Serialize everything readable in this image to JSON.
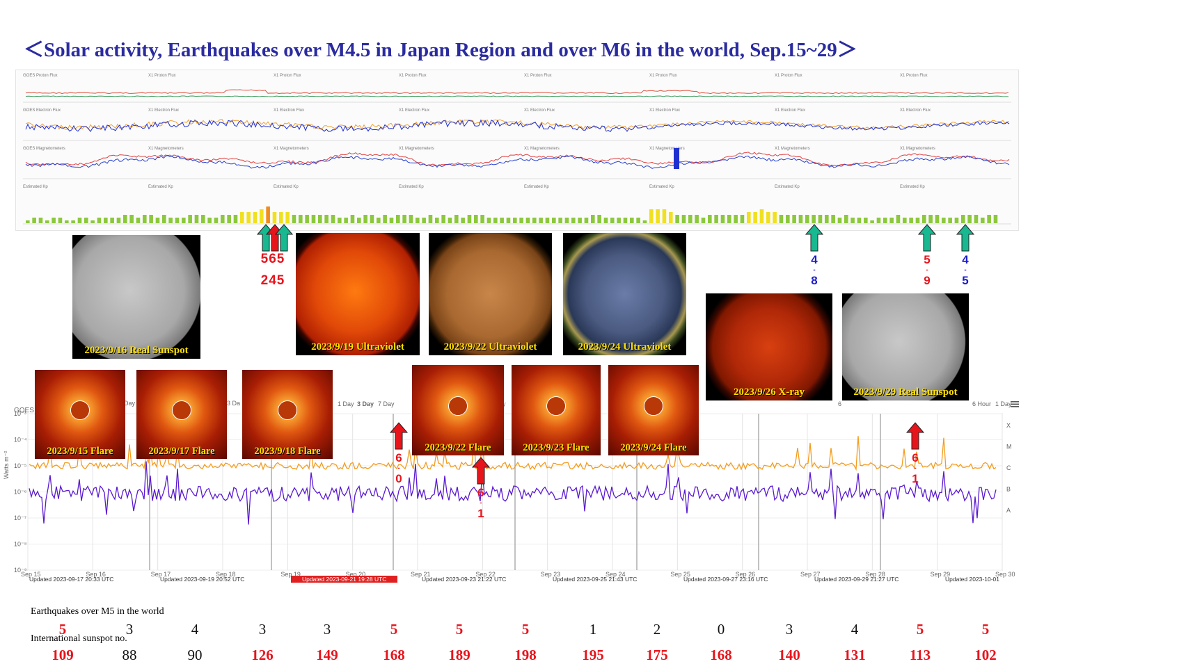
{
  "title": "＜Solar activity, Earthquakes over M4.5 in Japan Region and over M6 in the world, Sep.15~29＞",
  "colors": {
    "title": "#2b2ba0",
    "caption": "#ffe000",
    "red": "#e8141c",
    "green": "#18b890",
    "blue": "#1c1ccc",
    "orange_flux": "#f39c1e",
    "purple_flux": "#5a1ad0"
  },
  "strip_panel_labels": {
    "proton_flux": [
      "GOES Proton Flux",
      "X1 Proton Flux",
      "X1 Proton Flux",
      "X1 Proton Flux",
      "X1 Proton Flux",
      "X1 Proton Flux",
      "X1 Proton Flux",
      "X1 Proton Flux"
    ],
    "electron_flux": [
      "GOES Electron Flux",
      "X1 Electron Flux",
      "X1 Electron Flux",
      "X1 Electron Flux",
      "X1 Electron Flux",
      "X1 Electron Flux",
      "X1 Electron Flux",
      "X1 Electron Flux"
    ],
    "magnetometers": [
      "GOES Magnetometers",
      "X1 Magnetometers",
      "X1 Magnetometers",
      "X1 Magnetometers",
      "X1 Magnetometers",
      "X1 Magnetometers",
      "X1 Magnetometers",
      "X1 Magnetometers"
    ],
    "kp": [
      "Estimated Kp",
      "Estimated Kp",
      "Estimated Kp",
      "Estimated Kp",
      "Estimated Kp",
      "Estimated Kp",
      "Estimated Kp",
      "Estimated Kp"
    ]
  },
  "kp_levels": [
    1,
    2,
    2,
    1,
    2,
    2,
    1,
    1,
    2,
    2,
    1,
    2,
    2,
    2,
    2,
    3,
    3,
    2,
    3,
    3,
    2,
    3,
    2,
    2,
    2,
    3,
    3,
    3,
    2,
    2,
    3,
    3,
    3,
    4,
    4,
    4,
    5,
    6,
    4,
    4,
    4,
    3,
    3,
    3,
    3,
    3,
    3,
    3,
    2,
    2,
    3,
    2,
    3,
    3,
    2,
    3,
    2,
    3,
    3,
    3,
    2,
    2,
    3,
    2,
    3,
    2,
    3,
    2,
    3,
    3,
    3,
    2,
    2,
    2,
    2,
    2,
    2,
    2,
    2,
    2,
    2,
    2,
    2,
    2,
    2,
    2,
    2,
    3,
    3,
    2,
    2,
    2,
    2,
    2,
    2,
    1,
    5,
    5,
    5,
    4,
    3,
    3,
    3,
    3,
    2,
    3,
    3,
    3,
    3,
    3,
    3,
    4,
    4,
    5,
    4,
    4,
    3,
    3,
    3,
    3,
    3,
    3,
    3,
    3,
    3,
    2,
    3,
    2,
    2,
    2,
    1,
    2,
    2,
    2,
    3,
    2,
    2,
    2,
    3,
    3,
    3,
    2,
    2,
    2,
    3,
    3,
    3,
    2,
    3,
    3
  ],
  "suns": [
    {
      "date_caption": "2023/9/16 Real Sunspot",
      "kind": "sunspot"
    },
    {
      "date_caption": "2023/9/19 Ultraviolet",
      "kind": "uv-red"
    },
    {
      "date_caption": "2023/9/22 Ultraviolet",
      "kind": "uv-gold"
    },
    {
      "date_caption": "2023/9/24 Ultraviolet",
      "kind": "uv-blue"
    },
    {
      "date_caption": "2023/9/26 X-ray",
      "kind": "xray"
    },
    {
      "date_caption": "2023/9/29 Real Sunspot",
      "kind": "sunspot"
    }
  ],
  "flares": [
    {
      "date_caption": "2023/9/15 Flare"
    },
    {
      "date_caption": "2023/9/17 Flare"
    },
    {
      "date_caption": "2023/9/18 Flare"
    },
    {
      "date_caption": "2023/9/22 Flare"
    },
    {
      "date_caption": "2023/9/23 Flare"
    },
    {
      "date_caption": "2023/9/24 Flare"
    }
  ],
  "quake_markers": {
    "cluster_top": "565",
    "cluster_bottom": "245",
    "m1": {
      "top": "4",
      "bottom": "8"
    },
    "m2": {
      "top": "5",
      "bottom": "9"
    },
    "m3": {
      "top": "4",
      "bottom": "5"
    },
    "m4": {
      "top": "6",
      "bottom": "0"
    },
    "m5": {
      "top": "6",
      "bottom": "1"
    },
    "m6": {
      "top": "6",
      "bottom": "1"
    },
    "dash": "-"
  },
  "xray_chart": {
    "y_axis_title": "Watts m⁻²",
    "y_ticks": [
      "10⁻³",
      "10⁻⁴",
      "10⁻⁵",
      "10⁻⁶",
      "10⁻⁷",
      "10⁻⁸",
      "10⁻⁹"
    ],
    "classes": [
      "X",
      "M",
      "C",
      "B",
      "A"
    ],
    "x_ticks": [
      "Sep 15",
      "Sep 16",
      "Sep 17",
      "Sep 18",
      "Sep 19",
      "Sep 20",
      "Sep 21",
      "Sep 22",
      "Sep 23",
      "Sep 24",
      "Sep 25",
      "Sep 26",
      "Sep 27",
      "Sep 28",
      "Sep 29",
      "Sep 30"
    ],
    "goes_label": "GOES",
    "zoom_fragments": [
      "Day",
      "3 Da",
      "1 Day",
      "3 Day",
      "7 Day",
      "y",
      "6",
      "6 Hour",
      "1 Day"
    ],
    "updated": [
      "Updated 2023-09-17 20:33 UTC",
      "Updated 2023-09-19 20:52 UTC",
      "Updated 2023-09-21 19:28 UTC",
      "Updated 2023-09-23 21:22 UTC",
      "Updated 2023-09-25 21:43 UTC",
      "Updated 2023-09-27 23:16 UTC",
      "Updated 2023-09-29 21:27 UTC",
      "Updated 2023-10-01"
    ]
  },
  "table": {
    "earthquakes_label": "Earthquakes over M5 in the world",
    "sunspot_label": "International sunspot no.",
    "earthquakes": [
      {
        "v": "5",
        "red": true
      },
      {
        "v": "3",
        "red": false
      },
      {
        "v": "4",
        "red": false
      },
      {
        "v": "3",
        "red": false
      },
      {
        "v": "3",
        "red": false
      },
      {
        "v": "5",
        "red": true
      },
      {
        "v": "5",
        "red": true
      },
      {
        "v": "5",
        "red": true
      },
      {
        "v": "1",
        "red": false
      },
      {
        "v": "2",
        "red": false
      },
      {
        "v": "0",
        "red": false
      },
      {
        "v": "3",
        "red": false
      },
      {
        "v": "4",
        "red": false
      },
      {
        "v": "5",
        "red": true
      },
      {
        "v": "5",
        "red": true
      }
    ],
    "sunspots": [
      {
        "v": "109",
        "red": true
      },
      {
        "v": "88",
        "red": false
      },
      {
        "v": "90",
        "red": false
      },
      {
        "v": "126",
        "red": true
      },
      {
        "v": "149",
        "red": true
      },
      {
        "v": "168",
        "red": true
      },
      {
        "v": "189",
        "red": true
      },
      {
        "v": "198",
        "red": true
      },
      {
        "v": "195",
        "red": true
      },
      {
        "v": "175",
        "red": true
      },
      {
        "v": "168",
        "red": true
      },
      {
        "v": "140",
        "red": true
      },
      {
        "v": "131",
        "red": true
      },
      {
        "v": "113",
        "red": true
      },
      {
        "v": "102",
        "red": true
      }
    ]
  }
}
